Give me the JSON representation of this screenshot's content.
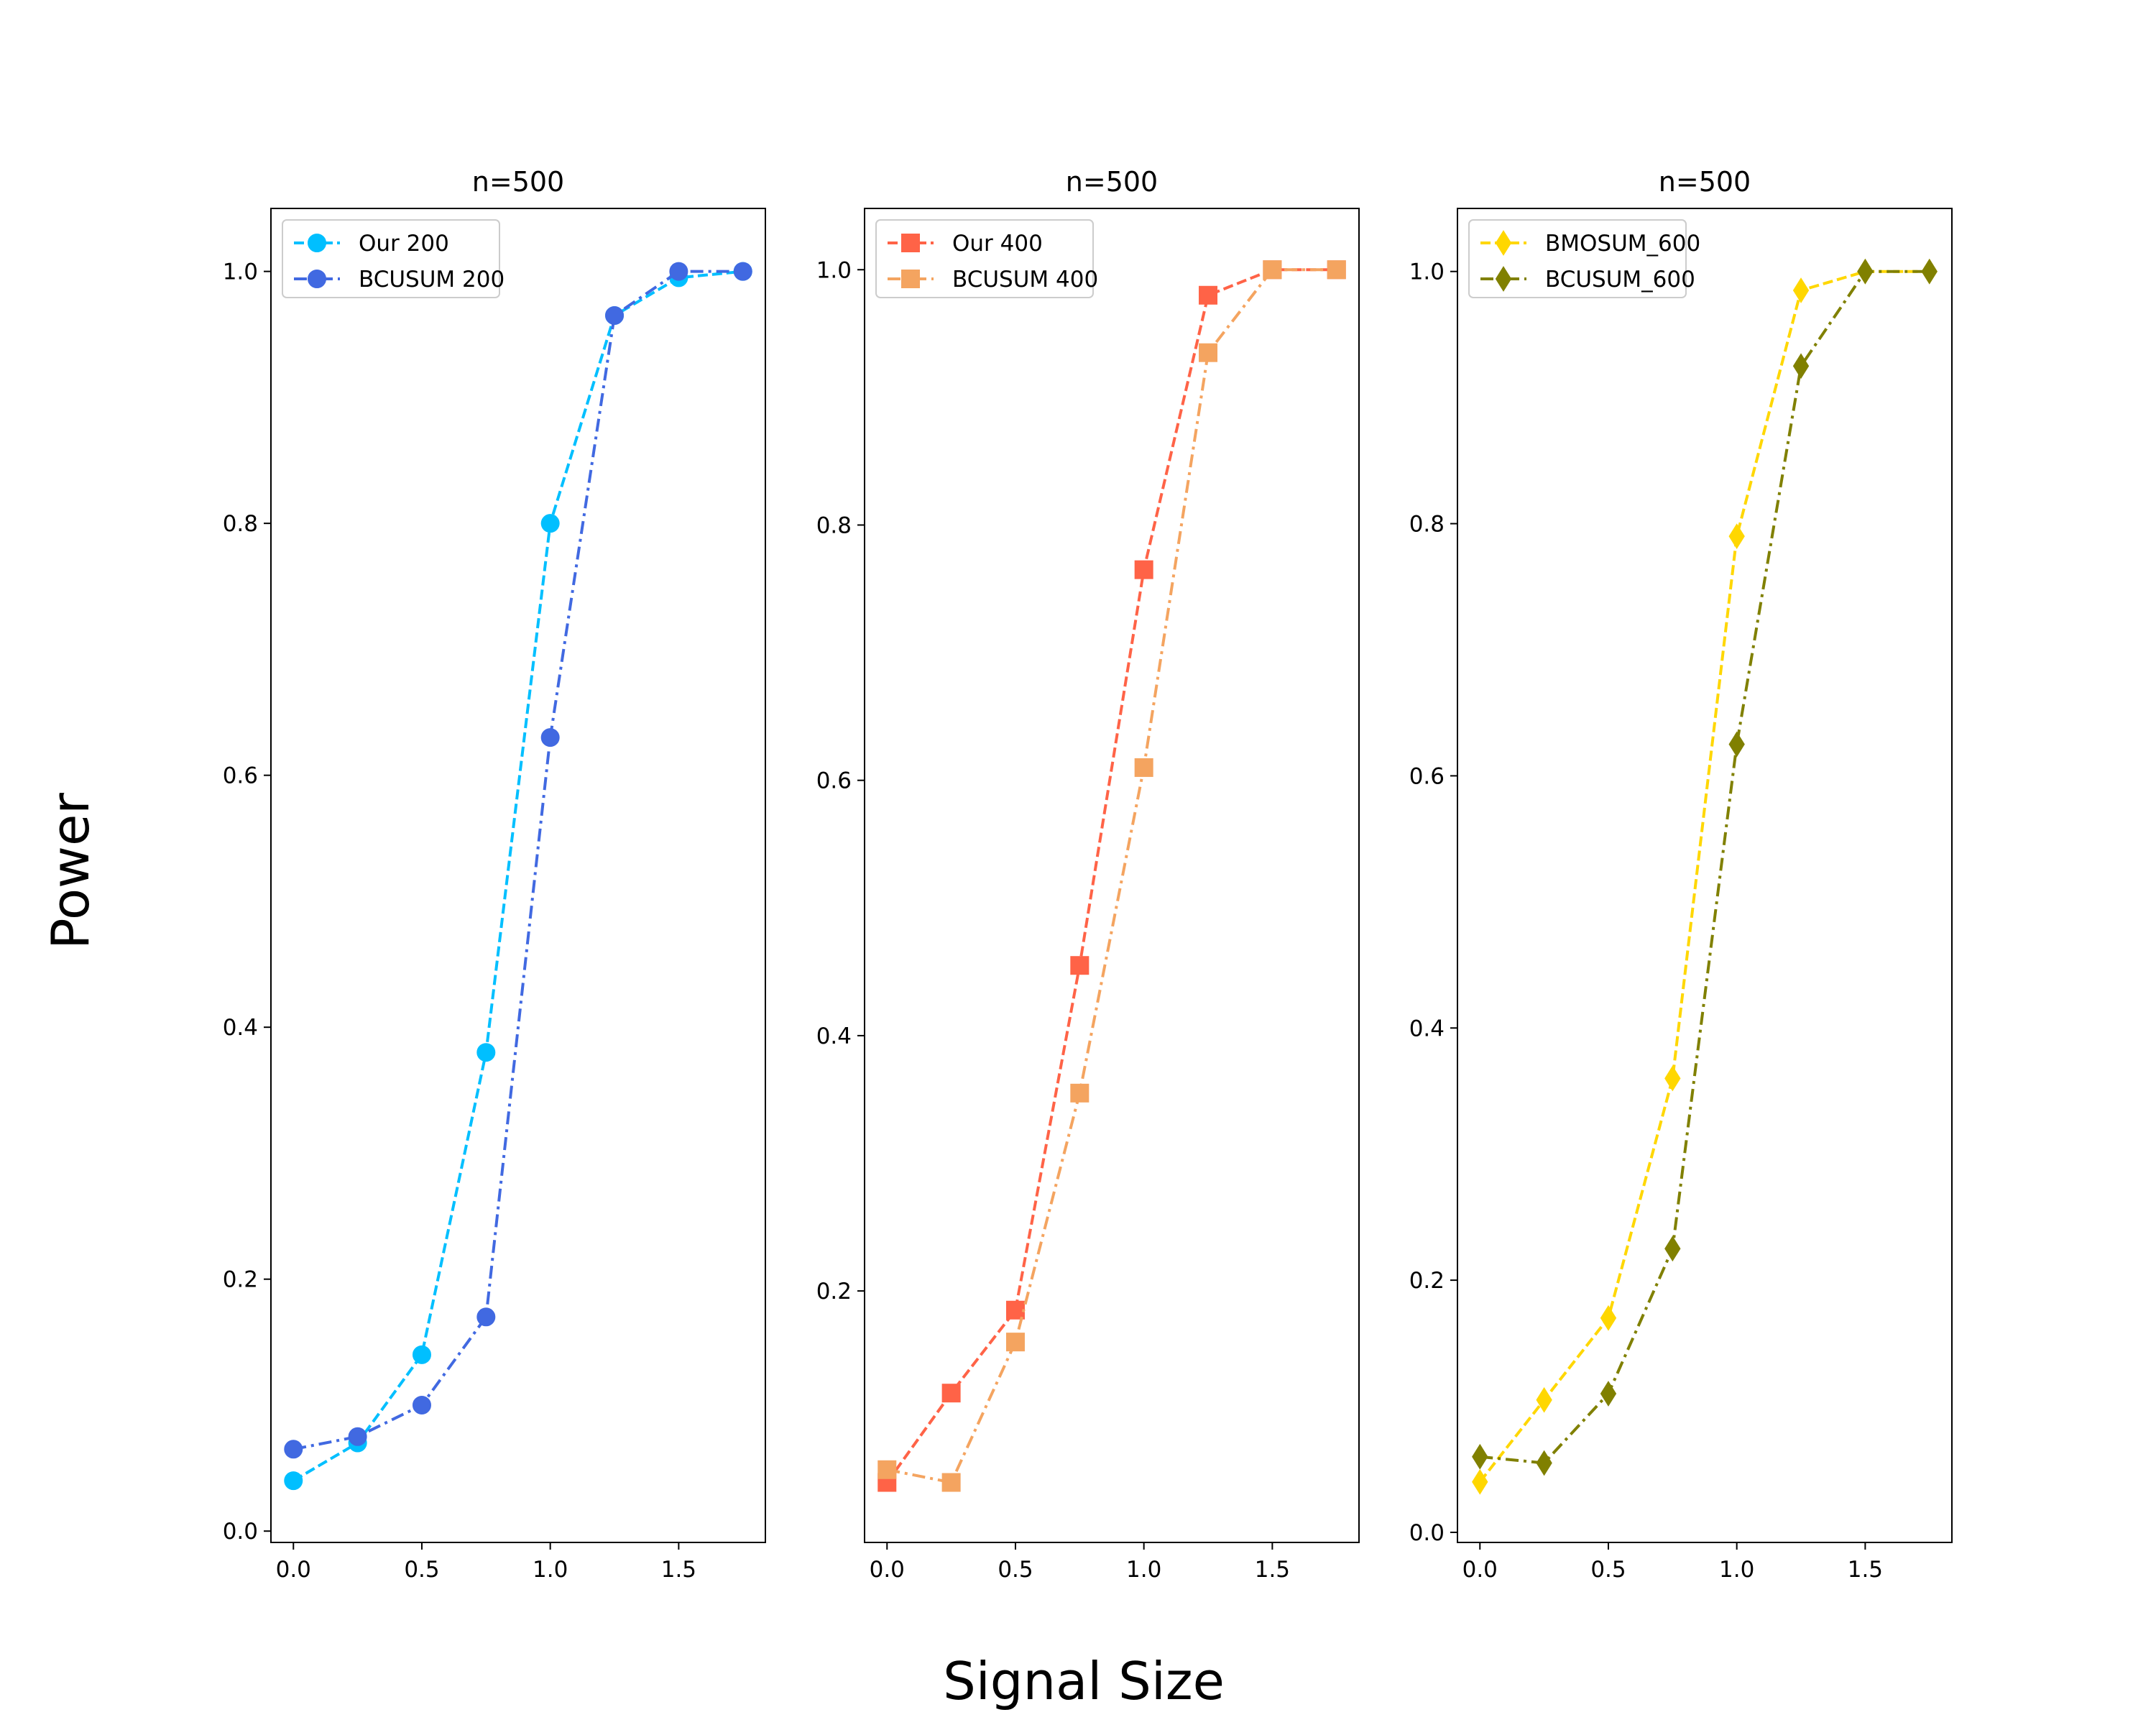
{
  "supxlabel": "Signal Size",
  "supylabel": "Power",
  "chart_data": [
    {
      "type": "line",
      "title": "n=500",
      "xlim": [
        -0.0875,
        1.8375
      ],
      "ylim": [
        -0.009,
        1.05
      ],
      "xticks": [
        "0.0",
        "0.5",
        "1.0",
        "1.5"
      ],
      "xtick_values": [
        0,
        0.5,
        1.0,
        1.5
      ],
      "yticks": [
        "0.0",
        "0.2",
        "0.4",
        "0.6",
        "0.8",
        "1.0"
      ],
      "ytick_values": [
        0,
        0.2,
        0.4,
        0.6,
        0.8,
        1.0
      ],
      "legend_position": "top-left",
      "x": [
        0,
        0.25,
        0.5,
        0.75,
        1.0,
        1.25,
        1.5,
        1.75
      ],
      "series": [
        {
          "name": "Our 200",
          "color": "#00bfff",
          "marker": "circle",
          "linestyle": "dashed",
          "values": [
            0.04,
            0.07,
            0.14,
            0.38,
            0.8,
            0.965,
            0.995,
            1.0
          ]
        },
        {
          "name": "BCUSUM 200",
          "color": "#4169e1",
          "marker": "circle",
          "linestyle": "dashdot",
          "values": [
            0.065,
            0.075,
            0.1,
            0.17,
            0.63,
            0.965,
            1.0,
            1.0
          ]
        }
      ]
    },
    {
      "type": "line",
      "title": "n=500",
      "xlim": [
        -0.0875,
        1.8375
      ],
      "ylim": [
        0.003,
        1.048
      ],
      "xticks": [
        "0.0",
        "0.5",
        "1.0",
        "1.5"
      ],
      "xtick_values": [
        0,
        0.5,
        1.0,
        1.5
      ],
      "yticks": [
        "0.2",
        "0.4",
        "0.6",
        "0.8",
        "1.0"
      ],
      "ytick_values": [
        0.2,
        0.4,
        0.6,
        0.8,
        1.0
      ],
      "legend_position": "top-left",
      "x": [
        0,
        0.25,
        0.5,
        0.75,
        1.0,
        1.25,
        1.5,
        1.75
      ],
      "series": [
        {
          "name": "Our 400",
          "color": "#ff6347",
          "marker": "square",
          "linestyle": "dashed",
          "values": [
            0.05,
            0.12,
            0.185,
            0.455,
            0.765,
            0.98,
            1.0,
            1.0
          ]
        },
        {
          "name": "BCUSUM 400",
          "color": "#f4a460",
          "marker": "square",
          "linestyle": "dashdot",
          "values": [
            0.06,
            0.05,
            0.16,
            0.355,
            0.61,
            0.935,
            1.0,
            1.0
          ]
        }
      ]
    },
    {
      "type": "line",
      "title": "n=500",
      "xlim": [
        -0.0875,
        1.8375
      ],
      "ylim": [
        -0.008,
        1.05
      ],
      "xticks": [
        "0.0",
        "0.5",
        "1.0",
        "1.5"
      ],
      "xtick_values": [
        0,
        0.5,
        1.0,
        1.5
      ],
      "yticks": [
        "0.0",
        "0.2",
        "0.4",
        "0.6",
        "0.8",
        "1.0"
      ],
      "ytick_values": [
        0,
        0.2,
        0.4,
        0.6,
        0.8,
        1.0
      ],
      "legend_position": "top-left",
      "x": [
        0,
        0.25,
        0.5,
        0.75,
        1.0,
        1.25,
        1.5,
        1.75
      ],
      "series": [
        {
          "name": "BMOSUM_600",
          "color": "#ffd700",
          "marker": "diamond",
          "linestyle": "dashed",
          "values": [
            0.04,
            0.105,
            0.17,
            0.36,
            0.79,
            0.985,
            1.0,
            1.0
          ]
        },
        {
          "name": "BCUSUM_600",
          "color": "#808000",
          "marker": "diamond",
          "linestyle": "dashdot",
          "values": [
            0.06,
            0.055,
            0.11,
            0.225,
            0.625,
            0.925,
            1.0,
            1.0
          ]
        }
      ]
    }
  ]
}
